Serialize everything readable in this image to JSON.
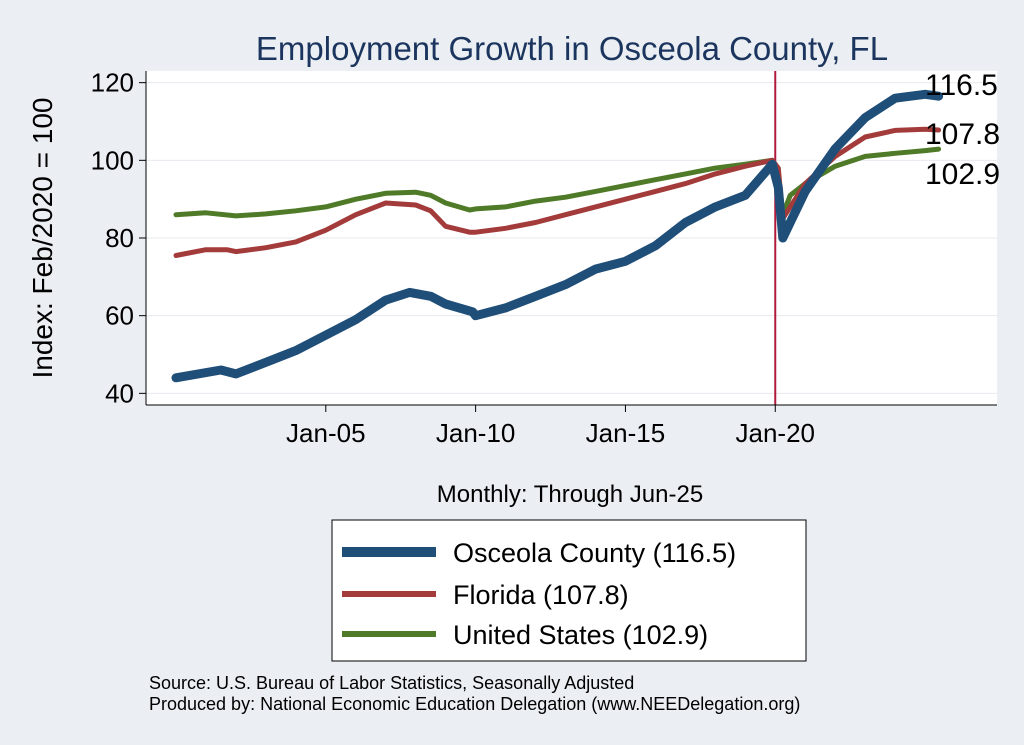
{
  "chart_data": {
    "type": "line",
    "title": "Employment Growth in Osceola  County, FL",
    "ylabel": "Index: Feb/2020 = 100",
    "xlabel": "Monthly: Through Jun-25",
    "ylim": [
      37,
      123
    ],
    "xlim": [
      1999.0,
      2027.4
    ],
    "yticks": [
      40,
      60,
      80,
      100,
      120
    ],
    "xticks": [
      {
        "value": 2005,
        "label": "Jan-05"
      },
      {
        "value": 2010,
        "label": "Jan-10"
      },
      {
        "value": 2015,
        "label": "Jan-15"
      },
      {
        "value": 2020,
        "label": "Jan-20"
      }
    ],
    "reference_line": {
      "x": 2020.0,
      "color": "#b01a3c"
    },
    "series": [
      {
        "name": "Osceola  County",
        "legend_label": "Osceola  County (116.5)",
        "end_label": "116.5",
        "color": "#1f4e79",
        "width": 9,
        "points": [
          [
            2000.0,
            44
          ],
          [
            2001.5,
            46
          ],
          [
            2002.0,
            45
          ],
          [
            2003.0,
            48
          ],
          [
            2004.0,
            51
          ],
          [
            2005.0,
            55
          ],
          [
            2006.0,
            59
          ],
          [
            2007.0,
            64
          ],
          [
            2007.8,
            66
          ],
          [
            2008.5,
            65
          ],
          [
            2009.0,
            63
          ],
          [
            2009.9,
            61
          ],
          [
            2010.0,
            60
          ],
          [
            2011.0,
            62
          ],
          [
            2012.0,
            65
          ],
          [
            2013.0,
            68
          ],
          [
            2014.0,
            72
          ],
          [
            2015.0,
            74
          ],
          [
            2016.0,
            78
          ],
          [
            2017.0,
            84
          ],
          [
            2018.0,
            88
          ],
          [
            2019.0,
            91
          ],
          [
            2019.9,
            99
          ],
          [
            2020.1,
            93
          ],
          [
            2020.25,
            80
          ],
          [
            2020.5,
            84
          ],
          [
            2021.0,
            92
          ],
          [
            2022.0,
            103
          ],
          [
            2023.0,
            111
          ],
          [
            2024.0,
            116
          ],
          [
            2025.0,
            117
          ],
          [
            2025.45,
            116.5
          ]
        ]
      },
      {
        "name": "Florida",
        "legend_label": "Florida (107.8)",
        "end_label": "107.8",
        "color": "#a33b3b",
        "width": 5,
        "points": [
          [
            2000.0,
            75.5
          ],
          [
            2001.0,
            77
          ],
          [
            2001.7,
            77
          ],
          [
            2002.0,
            76.5
          ],
          [
            2003.0,
            77.5
          ],
          [
            2004.0,
            79
          ],
          [
            2005.0,
            82
          ],
          [
            2006.0,
            86
          ],
          [
            2007.0,
            89
          ],
          [
            2008.0,
            88.5
          ],
          [
            2008.5,
            87
          ],
          [
            2009.0,
            83
          ],
          [
            2009.8,
            81.5
          ],
          [
            2010.0,
            81.5
          ],
          [
            2011.0,
            82.5
          ],
          [
            2012.0,
            84
          ],
          [
            2013.0,
            86
          ],
          [
            2014.0,
            88
          ],
          [
            2015.0,
            90
          ],
          [
            2016.0,
            92
          ],
          [
            2017.0,
            94
          ],
          [
            2018.0,
            96.5
          ],
          [
            2019.0,
            98.5
          ],
          [
            2019.9,
            100
          ],
          [
            2020.1,
            98
          ],
          [
            2020.25,
            85
          ],
          [
            2020.5,
            88
          ],
          [
            2021.0,
            94
          ],
          [
            2022.0,
            101
          ],
          [
            2023.0,
            106
          ],
          [
            2024.0,
            107.7
          ],
          [
            2025.0,
            108
          ],
          [
            2025.45,
            107.8
          ]
        ]
      },
      {
        "name": "United States",
        "legend_label": "United States (102.9)",
        "end_label": "102.9",
        "color": "#4f7a28",
        "width": 5,
        "points": [
          [
            2000.0,
            86
          ],
          [
            2001.0,
            86.5
          ],
          [
            2002.0,
            85.7
          ],
          [
            2003.0,
            86.2
          ],
          [
            2004.0,
            87
          ],
          [
            2005.0,
            88
          ],
          [
            2006.0,
            90
          ],
          [
            2007.0,
            91.5
          ],
          [
            2008.0,
            91.8
          ],
          [
            2008.5,
            91
          ],
          [
            2009.0,
            89
          ],
          [
            2009.8,
            87.2
          ],
          [
            2010.0,
            87.5
          ],
          [
            2011.0,
            88
          ],
          [
            2012.0,
            89.5
          ],
          [
            2013.0,
            90.5
          ],
          [
            2014.0,
            92
          ],
          [
            2015.0,
            93.5
          ],
          [
            2016.0,
            95
          ],
          [
            2017.0,
            96.5
          ],
          [
            2018.0,
            98
          ],
          [
            2019.0,
            99
          ],
          [
            2019.9,
            100
          ],
          [
            2020.1,
            97
          ],
          [
            2020.25,
            86
          ],
          [
            2020.5,
            91
          ],
          [
            2021.0,
            94
          ],
          [
            2022.0,
            98.5
          ],
          [
            2023.0,
            101
          ],
          [
            2024.0,
            101.8
          ],
          [
            2025.0,
            102.5
          ],
          [
            2025.45,
            102.9
          ]
        ]
      }
    ]
  },
  "source": {
    "line1": "Source: U.S. Bureau of Labor Statistics, Seasonally Adjusted",
    "line2": "Produced by: National Economic Education Delegation (www.NEEDelegation.org)"
  }
}
